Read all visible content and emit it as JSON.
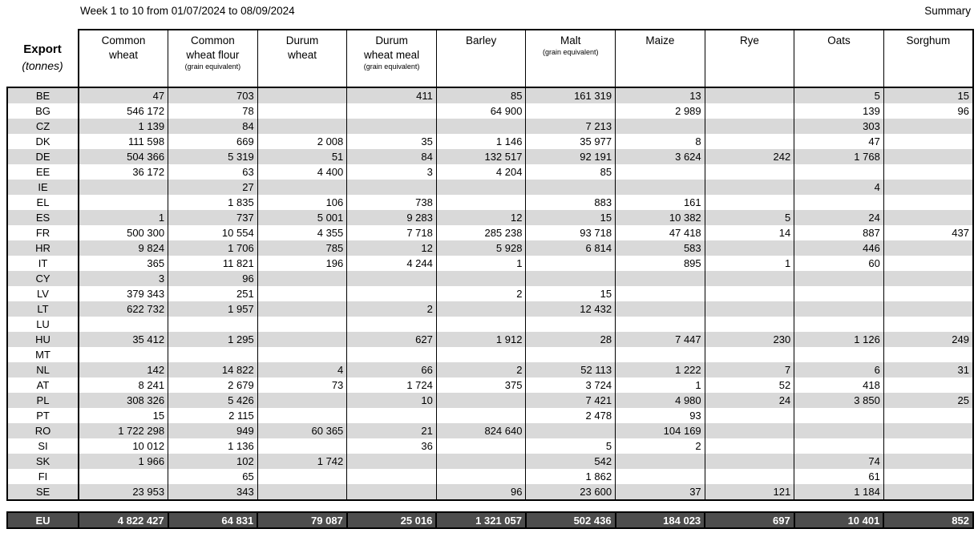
{
  "header": {
    "title": "Week 1 to 10 from 01/07/2024 to 08/09/2024",
    "summary": "Summary"
  },
  "colors": {
    "stripe": "#d9d9d9",
    "total_bg": "#4d4d4d",
    "total_text": "#ffffff",
    "border": "#000000"
  },
  "table": {
    "corner": {
      "title": "Export",
      "subtitle": "(tonnes)"
    },
    "columns": [
      {
        "lines": [
          "Common",
          "wheat"
        ],
        "sub": ""
      },
      {
        "lines": [
          "Common",
          "wheat flour"
        ],
        "sub": "(grain equivalent)"
      },
      {
        "lines": [
          "Durum",
          "wheat"
        ],
        "sub": ""
      },
      {
        "lines": [
          "Durum",
          "wheat meal"
        ],
        "sub": "(grain equivalent)"
      },
      {
        "lines": [
          "Barley"
        ],
        "sub": ""
      },
      {
        "lines": [
          "Malt"
        ],
        "sub": "(grain equivalent)"
      },
      {
        "lines": [
          "Maize"
        ],
        "sub": ""
      },
      {
        "lines": [
          "Rye"
        ],
        "sub": ""
      },
      {
        "lines": [
          "Oats"
        ],
        "sub": ""
      },
      {
        "lines": [
          "Sorghum"
        ],
        "sub": ""
      }
    ],
    "rows": [
      {
        "country": "BE",
        "values": [
          "47",
          "703",
          "",
          "411",
          "85",
          "161 319",
          "13",
          "",
          "5",
          "15"
        ]
      },
      {
        "country": "BG",
        "values": [
          "546 172",
          "78",
          "",
          "",
          "64 900",
          "",
          "2 989",
          "",
          "139",
          "96"
        ]
      },
      {
        "country": "CZ",
        "values": [
          "1 139",
          "84",
          "",
          "",
          "",
          "7 213",
          "",
          "",
          "303",
          ""
        ]
      },
      {
        "country": "DK",
        "values": [
          "111 598",
          "669",
          "2 008",
          "35",
          "1 146",
          "35 977",
          "8",
          "",
          "47",
          ""
        ]
      },
      {
        "country": "DE",
        "values": [
          "504 366",
          "5 319",
          "51",
          "84",
          "132 517",
          "92 191",
          "3 624",
          "242",
          "1 768",
          ""
        ]
      },
      {
        "country": "EE",
        "values": [
          "36 172",
          "63",
          "4 400",
          "3",
          "4 204",
          "85",
          "",
          "",
          "",
          ""
        ]
      },
      {
        "country": "IE",
        "values": [
          "",
          "27",
          "",
          "",
          "",
          "",
          "",
          "",
          "4",
          ""
        ]
      },
      {
        "country": "EL",
        "values": [
          "",
          "1 835",
          "106",
          "738",
          "",
          "883",
          "161",
          "",
          "",
          ""
        ]
      },
      {
        "country": "ES",
        "values": [
          "1",
          "737",
          "5 001",
          "9 283",
          "12",
          "15",
          "10 382",
          "5",
          "24",
          ""
        ]
      },
      {
        "country": "FR",
        "values": [
          "500 300",
          "10 554",
          "4 355",
          "7 718",
          "285 238",
          "93 718",
          "47 418",
          "14",
          "887",
          "437"
        ]
      },
      {
        "country": "HR",
        "values": [
          "9 824",
          "1 706",
          "785",
          "12",
          "5 928",
          "6 814",
          "583",
          "",
          "446",
          ""
        ]
      },
      {
        "country": "IT",
        "values": [
          "365",
          "11 821",
          "196",
          "4 244",
          "1",
          "",
          "895",
          "1",
          "60",
          ""
        ]
      },
      {
        "country": "CY",
        "values": [
          "3",
          "96",
          "",
          "",
          "",
          "",
          "",
          "",
          "",
          ""
        ]
      },
      {
        "country": "LV",
        "values": [
          "379 343",
          "251",
          "",
          "",
          "2",
          "15",
          "",
          "",
          "",
          ""
        ]
      },
      {
        "country": "LT",
        "values": [
          "622 732",
          "1 957",
          "",
          "2",
          "",
          "12 432",
          "",
          "",
          "",
          ""
        ]
      },
      {
        "country": "LU",
        "values": [
          "",
          "",
          "",
          "",
          "",
          "",
          "",
          "",
          "",
          ""
        ]
      },
      {
        "country": "HU",
        "values": [
          "35 412",
          "1 295",
          "",
          "627",
          "1 912",
          "28",
          "7 447",
          "230",
          "1 126",
          "249"
        ]
      },
      {
        "country": "MT",
        "values": [
          "",
          "",
          "",
          "",
          "",
          "",
          "",
          "",
          "",
          ""
        ]
      },
      {
        "country": "NL",
        "values": [
          "142",
          "14 822",
          "4",
          "66",
          "2",
          "52 113",
          "1 222",
          "7",
          "6",
          "31"
        ]
      },
      {
        "country": "AT",
        "values": [
          "8 241",
          "2 679",
          "73",
          "1 724",
          "375",
          "3 724",
          "1",
          "52",
          "418",
          ""
        ]
      },
      {
        "country": "PL",
        "values": [
          "308 326",
          "5 426",
          "",
          "10",
          "",
          "7 421",
          "4 980",
          "24",
          "3 850",
          "25"
        ]
      },
      {
        "country": "PT",
        "values": [
          "15",
          "2 115",
          "",
          "",
          "",
          "2 478",
          "93",
          "",
          "",
          ""
        ]
      },
      {
        "country": "RO",
        "values": [
          "1 722 298",
          "949",
          "60 365",
          "21",
          "824 640",
          "",
          "104 169",
          "",
          "",
          ""
        ]
      },
      {
        "country": "SI",
        "values": [
          "10 012",
          "1 136",
          "",
          "36",
          "",
          "5",
          "2",
          "",
          "",
          ""
        ]
      },
      {
        "country": "SK",
        "values": [
          "1 966",
          "102",
          "1 742",
          "",
          "",
          "542",
          "",
          "",
          "74",
          ""
        ]
      },
      {
        "country": "FI",
        "values": [
          "",
          "65",
          "",
          "",
          "",
          "1 862",
          "",
          "",
          "61",
          ""
        ]
      },
      {
        "country": "SE",
        "values": [
          "23 953",
          "343",
          "",
          "",
          "96",
          "23 600",
          "37",
          "121",
          "1 184",
          ""
        ]
      }
    ],
    "total": {
      "country": "EU",
      "values": [
        "4 822 427",
        "64 831",
        "79 087",
        "25 016",
        "1 321 057",
        "502 436",
        "184 023",
        "697",
        "10 401",
        "852"
      ]
    }
  }
}
